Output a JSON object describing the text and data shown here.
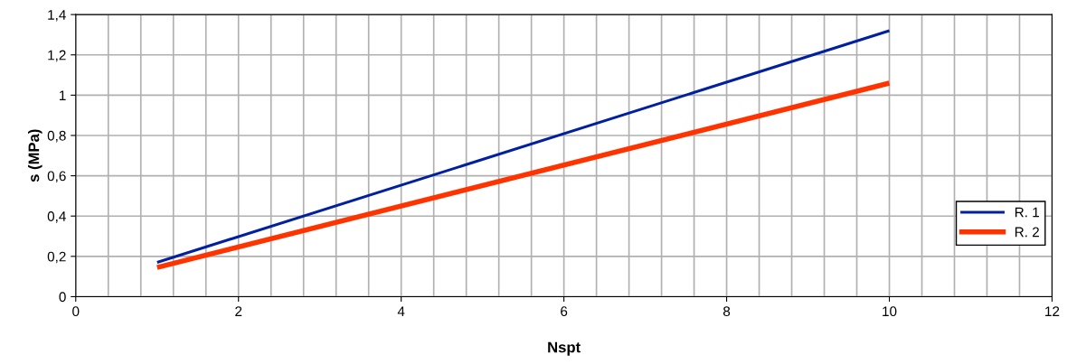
{
  "chart_data": {
    "type": "line",
    "xlabel": "Nspt",
    "ylabel": "s (MPa)",
    "xlim": [
      0,
      12
    ],
    "ylim": [
      0,
      1.4
    ],
    "xticks": [
      0,
      {
        "value": 0.4,
        "label": null
      },
      {
        "value": 0.8,
        "label": null
      },
      {
        "value": 1.2,
        "label": null
      },
      {
        "value": 1.6,
        "label": null
      },
      2,
      {
        "value": 2.4,
        "label": null
      },
      {
        "value": 2.8,
        "label": null
      },
      {
        "value": 3.2,
        "label": null
      },
      {
        "value": 3.6,
        "label": null
      },
      4,
      {
        "value": 4.4,
        "label": null
      },
      {
        "value": 4.8,
        "label": null
      },
      {
        "value": 5.2,
        "label": null
      },
      {
        "value": 5.6,
        "label": null
      },
      6,
      {
        "value": 6.4,
        "label": null
      },
      {
        "value": 6.8,
        "label": null
      },
      {
        "value": 7.2,
        "label": null
      },
      {
        "value": 7.6,
        "label": null
      },
      8,
      {
        "value": 8.4,
        "label": null
      },
      {
        "value": 8.8,
        "label": null
      },
      {
        "value": 9.2,
        "label": null
      },
      {
        "value": 9.6,
        "label": null
      },
      10,
      {
        "value": 10.4,
        "label": null
      },
      {
        "value": 10.8,
        "label": null
      },
      {
        "value": 11.2,
        "label": null
      },
      {
        "value": 11.6,
        "label": null
      },
      12
    ],
    "yticks": [
      0,
      {
        "value": 0.2,
        "label": "0,2"
      },
      {
        "value": 0.4,
        "label": "0,4"
      },
      {
        "value": 0.6,
        "label": "0,6"
      },
      {
        "value": 0.8,
        "label": "0,8"
      },
      1,
      {
        "value": 1.2,
        "label": "1,2"
      },
      {
        "value": 1.4,
        "label": "1,4"
      }
    ],
    "x": [
      1,
      10
    ],
    "grid": true,
    "legend": "right",
    "marker": "none",
    "line_style": "solid",
    "series": [
      {
        "name": "R. 1",
        "color": "#00209f",
        "values": [
          0.17,
          1.32
        ]
      },
      {
        "name": "R. 2",
        "color": "#ff3300",
        "values": [
          0.145,
          1.06
        ]
      }
    ]
  }
}
